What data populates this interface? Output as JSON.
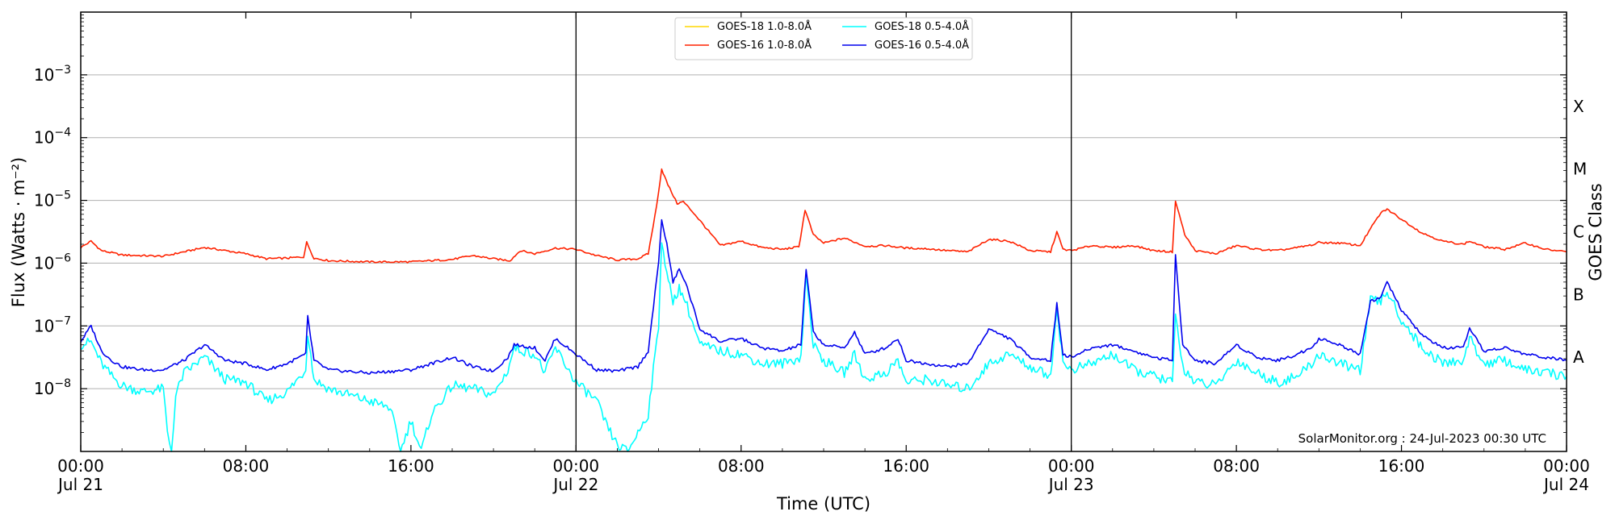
{
  "chart_data": {
    "type": "line",
    "xlabel": "Time (UTC)",
    "ylabel": "Flux (Watts · m⁻²)",
    "ylabel_right": "GOES Class",
    "credit": "SolarMonitor.org : 24-Jul-2023 00:30 UTC",
    "x_unit": "hours since 2023-07-21 00:00 UTC",
    "xlim": [
      0,
      72
    ],
    "ylim_log10": [
      -9.0,
      -2.0
    ],
    "yscale": "log",
    "grid": "horizontal",
    "x_ticks": [
      {
        "h": 0,
        "time": "00:00",
        "date": "Jul 21"
      },
      {
        "h": 8,
        "time": "08:00",
        "date": ""
      },
      {
        "h": 16,
        "time": "16:00",
        "date": ""
      },
      {
        "h": 24,
        "time": "00:00",
        "date": "Jul 22"
      },
      {
        "h": 32,
        "time": "08:00",
        "date": ""
      },
      {
        "h": 40,
        "time": "16:00",
        "date": ""
      },
      {
        "h": 48,
        "time": "00:00",
        "date": "Jul 23"
      },
      {
        "h": 56,
        "time": "08:00",
        "date": ""
      },
      {
        "h": 64,
        "time": "16:00",
        "date": ""
      },
      {
        "h": 72,
        "time": "00:00",
        "date": "Jul 24"
      }
    ],
    "y_ticks": [
      {
        "exp": -8,
        "label": "10",
        "sup": "−8"
      },
      {
        "exp": -7,
        "label": "10",
        "sup": "−7"
      },
      {
        "exp": -6,
        "label": "10",
        "sup": "−6"
      },
      {
        "exp": -5,
        "label": "10",
        "sup": "−5"
      },
      {
        "exp": -4,
        "label": "10",
        "sup": "−4"
      },
      {
        "exp": -3,
        "label": "10",
        "sup": "−3"
      }
    ],
    "goes_classes": [
      {
        "label": "A",
        "log10": -7.5
      },
      {
        "label": "B",
        "log10": -6.5
      },
      {
        "label": "C",
        "log10": -5.5
      },
      {
        "label": "M",
        "log10": -4.5
      },
      {
        "label": "X",
        "log10": -3.5
      }
    ],
    "day_boundaries": [
      24,
      48
    ],
    "series": [
      {
        "name": "GOES-18 1.0-8.0Å",
        "color": "#ffd700",
        "points": []
      },
      {
        "name": "GOES-16 1.0-8.0Å",
        "color": "#ff2200",
        "points": [
          [
            0,
            -5.75
          ],
          [
            0.5,
            -5.65
          ],
          [
            1,
            -5.8
          ],
          [
            2,
            -5.87
          ],
          [
            3,
            -5.88
          ],
          [
            4,
            -5.89
          ],
          [
            5,
            -5.82
          ],
          [
            6,
            -5.75
          ],
          [
            7,
            -5.8
          ],
          [
            8,
            -5.85
          ],
          [
            9,
            -5.93
          ],
          [
            10,
            -5.92
          ],
          [
            10.8,
            -5.9
          ],
          [
            10.95,
            -5.67
          ],
          [
            11.3,
            -5.92
          ],
          [
            12,
            -5.96
          ],
          [
            14,
            -5.98
          ],
          [
            16,
            -5.98
          ],
          [
            18,
            -5.94
          ],
          [
            19,
            -5.88
          ],
          [
            20,
            -5.93
          ],
          [
            20.8,
            -5.96
          ],
          [
            21.3,
            -5.8
          ],
          [
            22,
            -5.85
          ],
          [
            23,
            -5.76
          ],
          [
            24,
            -5.78
          ],
          [
            25,
            -5.88
          ],
          [
            26,
            -5.95
          ],
          [
            27,
            -5.93
          ],
          [
            27.5,
            -5.85
          ],
          [
            27.9,
            -5.1
          ],
          [
            28.15,
            -4.5
          ],
          [
            28.45,
            -4.75
          ],
          [
            28.9,
            -5.05
          ],
          [
            29.2,
            -5.02
          ],
          [
            29.7,
            -5.2
          ],
          [
            30.5,
            -5.52
          ],
          [
            31,
            -5.72
          ],
          [
            32,
            -5.65
          ],
          [
            33,
            -5.75
          ],
          [
            34,
            -5.78
          ],
          [
            34.8,
            -5.74
          ],
          [
            35.1,
            -5.15
          ],
          [
            35.5,
            -5.55
          ],
          [
            36,
            -5.68
          ],
          [
            37,
            -5.6
          ],
          [
            38,
            -5.73
          ],
          [
            39,
            -5.72
          ],
          [
            40,
            -5.76
          ],
          [
            41,
            -5.77
          ],
          [
            42,
            -5.8
          ],
          [
            43,
            -5.82
          ],
          [
            44,
            -5.62
          ],
          [
            45,
            -5.65
          ],
          [
            46,
            -5.8
          ],
          [
            47,
            -5.82
          ],
          [
            47.3,
            -5.5
          ],
          [
            47.6,
            -5.78
          ],
          [
            48,
            -5.8
          ],
          [
            49,
            -5.72
          ],
          [
            50,
            -5.75
          ],
          [
            51,
            -5.72
          ],
          [
            52,
            -5.8
          ],
          [
            52.9,
            -5.82
          ],
          [
            53.05,
            -5.0
          ],
          [
            53.5,
            -5.55
          ],
          [
            54,
            -5.8
          ],
          [
            55,
            -5.85
          ],
          [
            56,
            -5.72
          ],
          [
            57,
            -5.78
          ],
          [
            58,
            -5.8
          ],
          [
            59,
            -5.75
          ],
          [
            59.8,
            -5.7
          ],
          [
            60,
            -5.67
          ],
          [
            61,
            -5.68
          ],
          [
            62,
            -5.72
          ],
          [
            62.5,
            -5.45
          ],
          [
            63,
            -5.2
          ],
          [
            63.3,
            -5.14
          ],
          [
            64,
            -5.3
          ],
          [
            65,
            -5.52
          ],
          [
            66,
            -5.65
          ],
          [
            67,
            -5.7
          ],
          [
            67.3,
            -5.65
          ],
          [
            68,
            -5.74
          ],
          [
            69,
            -5.78
          ],
          [
            70,
            -5.68
          ],
          [
            71,
            -5.78
          ],
          [
            72,
            -5.82
          ]
        ]
      },
      {
        "name": "GOES-18 0.5-4.0Å",
        "color": "#00ffff",
        "points": [
          [
            0,
            -7.3
          ],
          [
            0.5,
            -7.25
          ],
          [
            1,
            -7.6
          ],
          [
            1.5,
            -7.8
          ],
          [
            2,
            -7.95
          ],
          [
            3,
            -8.05
          ],
          [
            4,
            -8.0
          ],
          [
            4.2,
            -8.7
          ],
          [
            4.4,
            -9.0
          ],
          [
            4.6,
            -8.1
          ],
          [
            5,
            -7.75
          ],
          [
            6,
            -7.5
          ],
          [
            7,
            -7.85
          ],
          [
            8,
            -7.9
          ],
          [
            9,
            -8.2
          ],
          [
            10,
            -8.05
          ],
          [
            10.9,
            -7.7
          ],
          [
            11,
            -7.1
          ],
          [
            11.3,
            -7.85
          ],
          [
            12,
            -8.0
          ],
          [
            13,
            -8.1
          ],
          [
            14,
            -8.2
          ],
          [
            15,
            -8.3
          ],
          [
            15.5,
            -9.0
          ],
          [
            16,
            -8.5
          ],
          [
            16.5,
            -9.0
          ],
          [
            17,
            -8.4
          ],
          [
            18,
            -7.95
          ],
          [
            19,
            -8.0
          ],
          [
            20,
            -8.1
          ],
          [
            20.7,
            -7.7
          ],
          [
            21,
            -7.35
          ],
          [
            22,
            -7.45
          ],
          [
            22.5,
            -7.75
          ],
          [
            23,
            -7.35
          ],
          [
            24,
            -7.9
          ],
          [
            25,
            -8.2
          ],
          [
            25.5,
            -8.6
          ],
          [
            26,
            -8.9
          ],
          [
            26.5,
            -9.0
          ],
          [
            27,
            -8.7
          ],
          [
            27.5,
            -8.4
          ],
          [
            28.0,
            -7.0
          ],
          [
            28.15,
            -5.6
          ],
          [
            28.4,
            -6.2
          ],
          [
            28.7,
            -6.6
          ],
          [
            29.0,
            -6.4
          ],
          [
            29.3,
            -6.6
          ],
          [
            30,
            -7.3
          ],
          [
            31,
            -7.4
          ],
          [
            32,
            -7.45
          ],
          [
            33,
            -7.6
          ],
          [
            34,
            -7.6
          ],
          [
            34.9,
            -7.5
          ],
          [
            35.15,
            -6.2
          ],
          [
            35.5,
            -7.3
          ],
          [
            36,
            -7.55
          ],
          [
            37,
            -7.75
          ],
          [
            37.5,
            -7.45
          ],
          [
            38,
            -7.85
          ],
          [
            39,
            -7.75
          ],
          [
            39.6,
            -7.55
          ],
          [
            40,
            -7.9
          ],
          [
            41,
            -7.85
          ],
          [
            42,
            -7.95
          ],
          [
            43,
            -8.0
          ],
          [
            44,
            -7.6
          ],
          [
            45,
            -7.45
          ],
          [
            46,
            -7.65
          ],
          [
            47,
            -7.8
          ],
          [
            47.3,
            -6.7
          ],
          [
            47.6,
            -7.6
          ],
          [
            48,
            -7.7
          ],
          [
            49,
            -7.6
          ],
          [
            50,
            -7.45
          ],
          [
            51,
            -7.7
          ],
          [
            52,
            -7.8
          ],
          [
            52.9,
            -7.9
          ],
          [
            53.05,
            -6.85
          ],
          [
            53.4,
            -7.65
          ],
          [
            54,
            -7.9
          ],
          [
            55,
            -7.95
          ],
          [
            56,
            -7.55
          ],
          [
            57,
            -7.75
          ],
          [
            58,
            -7.9
          ],
          [
            59,
            -7.8
          ],
          [
            59.8,
            -7.55
          ],
          [
            60,
            -7.45
          ],
          [
            61,
            -7.6
          ],
          [
            62,
            -7.7
          ],
          [
            62.5,
            -6.6
          ],
          [
            63,
            -6.6
          ],
          [
            63.3,
            -6.45
          ],
          [
            64,
            -6.9
          ],
          [
            65,
            -7.35
          ],
          [
            66,
            -7.6
          ],
          [
            67,
            -7.55
          ],
          [
            67.3,
            -7.2
          ],
          [
            68,
            -7.6
          ],
          [
            69,
            -7.55
          ],
          [
            70,
            -7.7
          ],
          [
            71,
            -7.75
          ],
          [
            72,
            -7.8
          ]
        ]
      },
      {
        "name": "GOES-16 0.5-4.0Å",
        "color": "#0000ee",
        "points": [
          [
            0,
            -7.25
          ],
          [
            0.5,
            -7.0
          ],
          [
            1,
            -7.4
          ],
          [
            1.5,
            -7.55
          ],
          [
            2,
            -7.65
          ],
          [
            3,
            -7.7
          ],
          [
            4,
            -7.7
          ],
          [
            5,
            -7.55
          ],
          [
            6,
            -7.3
          ],
          [
            7,
            -7.55
          ],
          [
            8,
            -7.6
          ],
          [
            9,
            -7.7
          ],
          [
            10,
            -7.6
          ],
          [
            10.9,
            -7.45
          ],
          [
            11,
            -6.85
          ],
          [
            11.3,
            -7.55
          ],
          [
            12,
            -7.7
          ],
          [
            14,
            -7.75
          ],
          [
            16,
            -7.7
          ],
          [
            18,
            -7.5
          ],
          [
            19,
            -7.65
          ],
          [
            20,
            -7.72
          ],
          [
            20.7,
            -7.5
          ],
          [
            21,
            -7.3
          ],
          [
            22,
            -7.35
          ],
          [
            22.5,
            -7.55
          ],
          [
            23,
            -7.2
          ],
          [
            24,
            -7.45
          ],
          [
            25,
            -7.7
          ],
          [
            26,
            -7.72
          ],
          [
            27,
            -7.65
          ],
          [
            27.5,
            -7.4
          ],
          [
            28.0,
            -6.0
          ],
          [
            28.15,
            -5.3
          ],
          [
            28.4,
            -5.7
          ],
          [
            28.7,
            -6.3
          ],
          [
            29.0,
            -6.1
          ],
          [
            29.3,
            -6.3
          ],
          [
            30,
            -7.05
          ],
          [
            31,
            -7.25
          ],
          [
            32,
            -7.2
          ],
          [
            33,
            -7.35
          ],
          [
            34,
            -7.4
          ],
          [
            34.9,
            -7.3
          ],
          [
            35.15,
            -6.1
          ],
          [
            35.5,
            -7.1
          ],
          [
            36,
            -7.3
          ],
          [
            37,
            -7.35
          ],
          [
            37.5,
            -7.1
          ],
          [
            38,
            -7.45
          ],
          [
            39,
            -7.35
          ],
          [
            39.6,
            -7.2
          ],
          [
            40,
            -7.55
          ],
          [
            41,
            -7.6
          ],
          [
            42,
            -7.65
          ],
          [
            43,
            -7.6
          ],
          [
            44,
            -7.05
          ],
          [
            45,
            -7.2
          ],
          [
            46,
            -7.5
          ],
          [
            47,
            -7.55
          ],
          [
            47.3,
            -6.65
          ],
          [
            47.6,
            -7.45
          ],
          [
            48,
            -7.5
          ],
          [
            49,
            -7.35
          ],
          [
            50,
            -7.3
          ],
          [
            51,
            -7.4
          ],
          [
            52,
            -7.5
          ],
          [
            52.9,
            -7.55
          ],
          [
            53.05,
            -5.85
          ],
          [
            53.4,
            -7.3
          ],
          [
            54,
            -7.55
          ],
          [
            55,
            -7.6
          ],
          [
            56,
            -7.3
          ],
          [
            57,
            -7.5
          ],
          [
            58,
            -7.55
          ],
          [
            59,
            -7.45
          ],
          [
            59.8,
            -7.3
          ],
          [
            60,
            -7.2
          ],
          [
            61,
            -7.3
          ],
          [
            62,
            -7.45
          ],
          [
            62.5,
            -6.6
          ],
          [
            63,
            -6.55
          ],
          [
            63.3,
            -6.3
          ],
          [
            64,
            -6.75
          ],
          [
            65,
            -7.15
          ],
          [
            66,
            -7.35
          ],
          [
            67,
            -7.35
          ],
          [
            67.3,
            -7.05
          ],
          [
            68,
            -7.4
          ],
          [
            69,
            -7.35
          ],
          [
            70,
            -7.45
          ],
          [
            71,
            -7.5
          ],
          [
            72,
            -7.55
          ]
        ]
      }
    ]
  }
}
